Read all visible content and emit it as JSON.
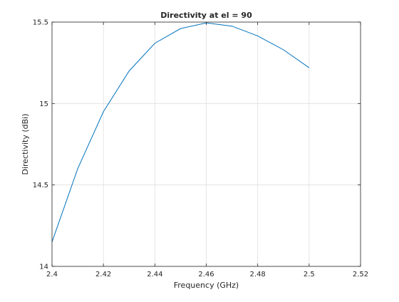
{
  "chart_data": {
    "type": "line",
    "title": "Directivity at el = 90",
    "xlabel": "Frequency (GHz)",
    "ylabel": "Directivity (dBi)",
    "xlim": [
      2.4,
      2.52
    ],
    "ylim": [
      14,
      15.5
    ],
    "xticks": [
      2.4,
      2.42,
      2.44,
      2.46,
      2.48,
      2.5,
      2.52
    ],
    "xtick_labels": [
      "2.4",
      "2.42",
      "2.44",
      "2.46",
      "2.48",
      "2.5",
      "2.52"
    ],
    "yticks": [
      14,
      14.5,
      15,
      15.5
    ],
    "ytick_labels": [
      "14",
      "14.5",
      "15",
      "15.5"
    ],
    "grid": true,
    "series": [
      {
        "color": "#0072bd",
        "x": [
          2.4,
          2.41,
          2.42,
          2.43,
          2.44,
          2.45,
          2.46,
          2.47,
          2.48,
          2.49,
          2.5
        ],
        "y": [
          14.15,
          14.6,
          14.95,
          15.2,
          15.37,
          15.46,
          15.495,
          15.475,
          15.415,
          15.33,
          15.22
        ]
      }
    ]
  }
}
